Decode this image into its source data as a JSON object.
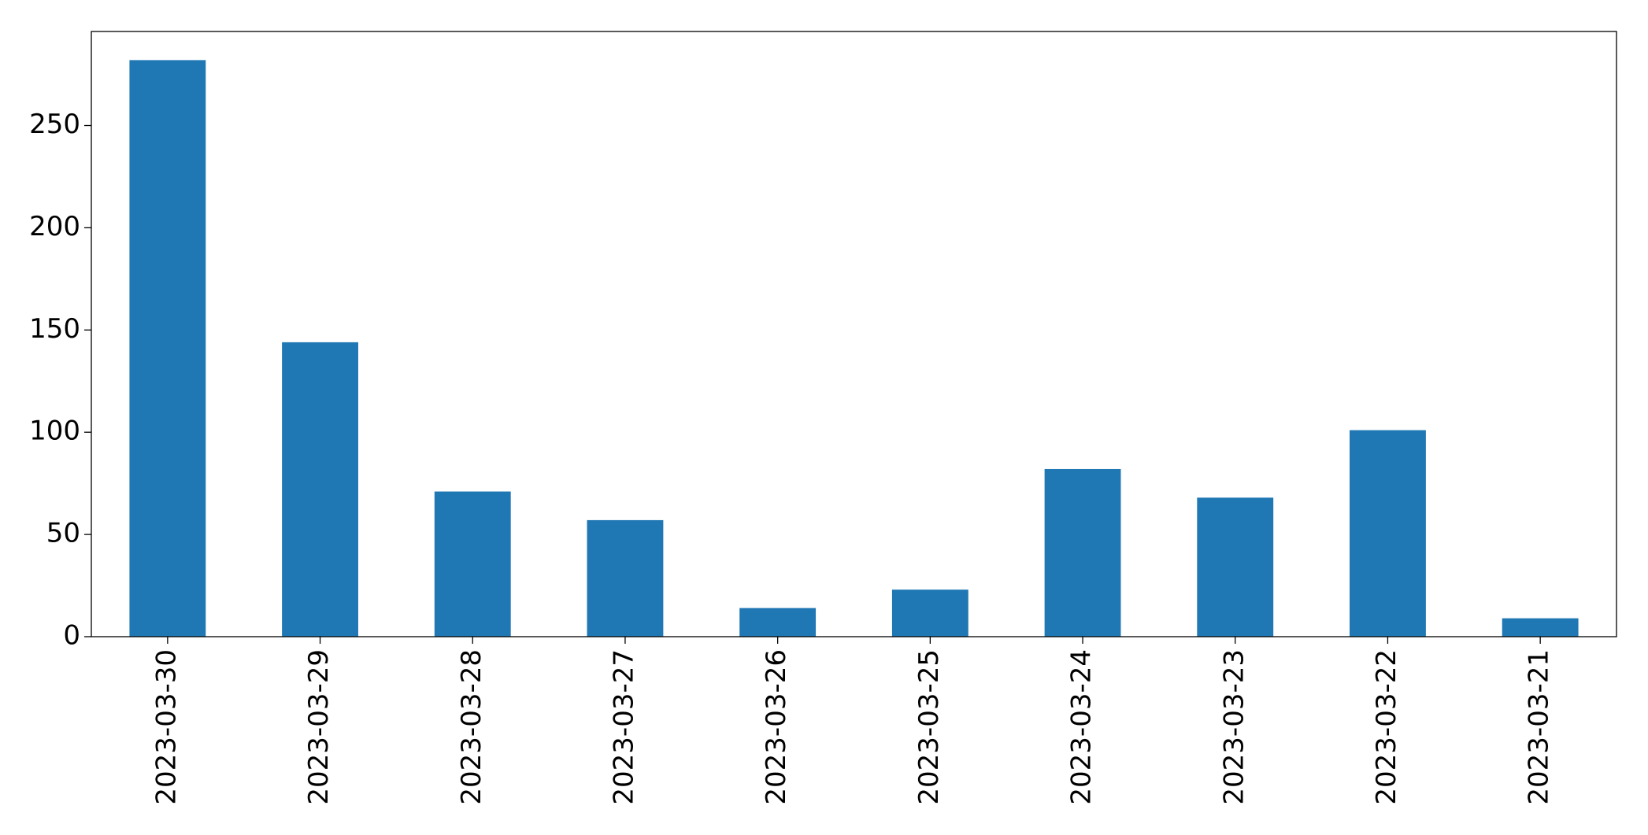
{
  "chart_data": {
    "type": "bar",
    "categories": [
      "2023-03-30",
      "2023-03-29",
      "2023-03-28",
      "2023-03-27",
      "2023-03-26",
      "2023-03-25",
      "2023-03-24",
      "2023-03-23",
      "2023-03-22",
      "2023-03-21"
    ],
    "values": [
      282,
      144,
      71,
      57,
      14,
      23,
      82,
      68,
      101,
      9
    ],
    "color": "#1f77b4",
    "ylim": [
      0,
      296
    ],
    "yticks": [
      0,
      50,
      100,
      150,
      200,
      250
    ],
    "grid": false
  }
}
